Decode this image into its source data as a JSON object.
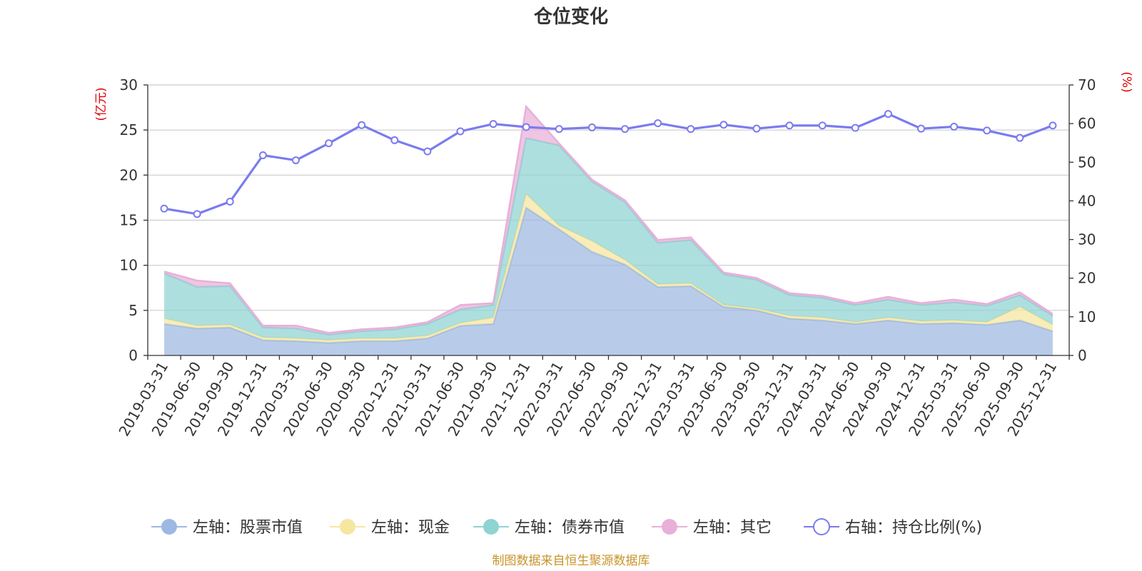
{
  "chart_data": {
    "type": "area",
    "title": "仓位变化",
    "left_axis_unit": "(亿元)",
    "right_axis_unit": "(%)",
    "ylim_left": [
      0,
      30
    ],
    "yticks_left": [
      0,
      5,
      10,
      15,
      20,
      25,
      30
    ],
    "ylim_right": [
      0,
      70
    ],
    "yticks_right": [
      0,
      10,
      20,
      30,
      40,
      50,
      60,
      70
    ],
    "grid": true,
    "legend_position": "bottom",
    "stacked": true,
    "categories": [
      "2019-03-31",
      "2019-06-30",
      "2019-09-30",
      "2019-12-31",
      "2020-03-31",
      "2020-06-30",
      "2020-09-30",
      "2020-12-31",
      "2021-03-31",
      "2021-06-30",
      "2021-09-30",
      "2021-12-31",
      "2022-03-31",
      "2022-06-30",
      "2022-09-30",
      "2022-12-31",
      "2023-03-31",
      "2023-06-30",
      "2023-09-30",
      "2023-12-31",
      "2024-03-31",
      "2024-06-30",
      "2024-09-30",
      "2024-12-31",
      "2025-03-31",
      "2025-06-30",
      "2025-09-30",
      "2025-12-31"
    ],
    "series": [
      {
        "name": "左轴：股票市值",
        "axis": "left",
        "color": "#9db8e2",
        "values": [
          3.5,
          3.0,
          3.1,
          1.7,
          1.6,
          1.4,
          1.6,
          1.6,
          1.9,
          3.3,
          3.5,
          16.4,
          14.0,
          11.5,
          10.1,
          7.6,
          7.7,
          5.4,
          5.0,
          4.1,
          3.9,
          3.5,
          3.9,
          3.5,
          3.6,
          3.4,
          3.9,
          2.7
        ]
      },
      {
        "name": "左轴：现金",
        "axis": "left",
        "color": "#f5e6a0",
        "values": [
          0.6,
          0.3,
          0.3,
          0.3,
          0.3,
          0.3,
          0.3,
          0.3,
          0.3,
          0.3,
          0.7,
          1.5,
          0.4,
          1.2,
          0.5,
          0.3,
          0.3,
          0.2,
          0.2,
          0.3,
          0.3,
          0.2,
          0.3,
          0.3,
          0.3,
          0.3,
          1.5,
          0.7
        ]
      },
      {
        "name": "左轴：债券市值",
        "axis": "left",
        "color": "#8fd3d3",
        "values": [
          5.0,
          4.3,
          4.3,
          1.1,
          1.1,
          0.6,
          0.8,
          1.0,
          1.3,
          1.5,
          1.4,
          6.2,
          8.9,
          6.6,
          6.4,
          4.6,
          4.8,
          3.4,
          3.2,
          2.3,
          2.2,
          1.9,
          2.0,
          1.8,
          2.0,
          1.8,
          1.3,
          1.0
        ]
      },
      {
        "name": "左轴：其它",
        "axis": "left",
        "color": "#e8b0d8",
        "values": [
          0.2,
          0.7,
          0.3,
          0.2,
          0.3,
          0.2,
          0.2,
          0.2,
          0.2,
          0.5,
          0.2,
          3.5,
          0.2,
          0.2,
          0.2,
          0.3,
          0.3,
          0.2,
          0.2,
          0.2,
          0.2,
          0.2,
          0.3,
          0.2,
          0.3,
          0.2,
          0.3,
          0.2
        ]
      },
      {
        "name": "右轴：持仓比例(%)",
        "axis": "right",
        "color": "#7b7bef",
        "values": [
          38.0,
          36.6,
          39.8,
          51.8,
          50.5,
          54.9,
          59.6,
          55.7,
          52.8,
          58.0,
          59.9,
          59.1,
          58.6,
          59.0,
          58.6,
          60.1,
          58.6,
          59.7,
          58.7,
          59.5,
          59.5,
          58.9,
          62.5,
          58.7,
          59.2,
          58.2,
          56.3,
          59.5
        ]
      }
    ]
  },
  "footer": {
    "source": "制图数据来自恒生聚源数据库"
  }
}
